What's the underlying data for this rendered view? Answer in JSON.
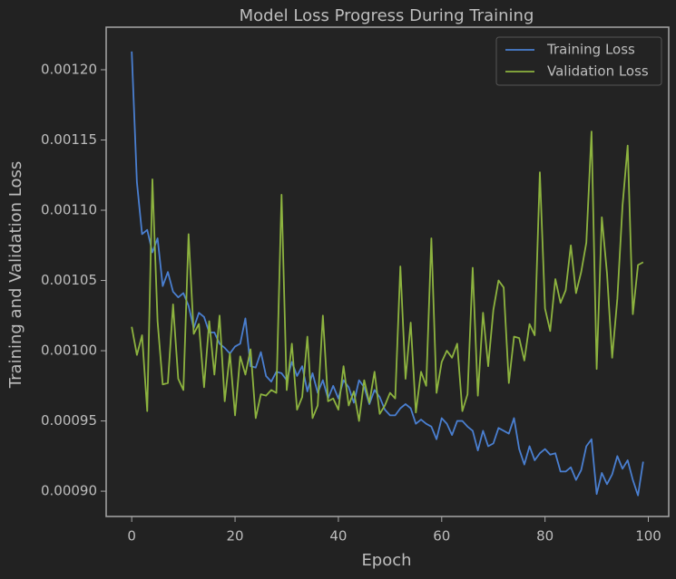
{
  "chart_data": {
    "type": "line",
    "title": "Model Loss Progress During Training",
    "x_label": "Epoch",
    "y_label": "Training and Validation Loss",
    "x": [
      0,
      1,
      2,
      3,
      4,
      5,
      6,
      7,
      8,
      9,
      10,
      11,
      12,
      13,
      14,
      15,
      16,
      17,
      18,
      19,
      20,
      21,
      22,
      23,
      24,
      25,
      26,
      27,
      28,
      29,
      30,
      31,
      32,
      33,
      34,
      35,
      36,
      37,
      38,
      39,
      40,
      41,
      42,
      43,
      44,
      45,
      46,
      47,
      48,
      49,
      50,
      51,
      52,
      53,
      54,
      55,
      56,
      57,
      58,
      59,
      60,
      61,
      62,
      63,
      64,
      65,
      66,
      67,
      68,
      69,
      70,
      71,
      72,
      73,
      74,
      75,
      76,
      77,
      78,
      79,
      80,
      81,
      82,
      83,
      84,
      85,
      86,
      87,
      88,
      89,
      90,
      91,
      92,
      93,
      94,
      95,
      96,
      97,
      98,
      99
    ],
    "series": [
      {
        "name": "Training Loss",
        "color": "#4a7fd0",
        "values": [
          0.001213,
          0.00112,
          0.001083,
          0.001086,
          0.00107,
          0.00108,
          0.001046,
          0.001056,
          0.001042,
          0.001038,
          0.001041,
          0.001032,
          0.001016,
          0.001027,
          0.001024,
          0.001013,
          0.001013,
          0.001005,
          0.001002,
          0.000998,
          0.001003,
          0.001005,
          0.001023,
          0.000989,
          0.000988,
          0.000999,
          0.000982,
          0.000978,
          0.000985,
          0.000984,
          0.000979,
          0.000992,
          0.000982,
          0.000989,
          0.000971,
          0.000984,
          0.00097,
          0.000979,
          0.000966,
          0.000975,
          0.000966,
          0.000979,
          0.000974,
          0.000963,
          0.000979,
          0.000974,
          0.000962,
          0.000972,
          0.000967,
          0.000958,
          0.000954,
          0.000954,
          0.000959,
          0.000962,
          0.000959,
          0.000948,
          0.000951,
          0.000948,
          0.000946,
          0.000937,
          0.000952,
          0.000948,
          0.00094,
          0.00095,
          0.00095,
          0.000946,
          0.000943,
          0.000929,
          0.000943,
          0.000932,
          0.000934,
          0.000945,
          0.000943,
          0.000941,
          0.000952,
          0.00093,
          0.000919,
          0.000932,
          0.000922,
          0.000927,
          0.00093,
          0.000926,
          0.000927,
          0.000914,
          0.000914,
          0.000917,
          0.000908,
          0.000915,
          0.000932,
          0.000937,
          0.000898,
          0.000913,
          0.000905,
          0.000912,
          0.000925,
          0.000916,
          0.000922,
          0.000908,
          0.000897,
          0.000921
        ]
      },
      {
        "name": "Validation Loss",
        "color": "#8db33f",
        "values": [
          0.001017,
          0.000997,
          0.001011,
          0.000957,
          0.001122,
          0.001021,
          0.000976,
          0.000977,
          0.001033,
          0.00098,
          0.000972,
          0.001083,
          0.001012,
          0.001019,
          0.000974,
          0.001021,
          0.000983,
          0.001025,
          0.000964,
          0.000998,
          0.000954,
          0.000996,
          0.000983,
          0.001001,
          0.000952,
          0.000969,
          0.000968,
          0.000972,
          0.00097,
          0.001111,
          0.000972,
          0.001005,
          0.000958,
          0.000967,
          0.00101,
          0.000952,
          0.000961,
          0.001025,
          0.000964,
          0.000966,
          0.000958,
          0.000989,
          0.000961,
          0.000971,
          0.00095,
          0.000979,
          0.000963,
          0.000985,
          0.000955,
          0.000961,
          0.00097,
          0.000966,
          0.00106,
          0.00098,
          0.00102,
          0.000956,
          0.000985,
          0.000975,
          0.00108,
          0.00097,
          0.000992,
          0.001,
          0.000995,
          0.001005,
          0.000957,
          0.000969,
          0.001059,
          0.000968,
          0.001027,
          0.000989,
          0.001029,
          0.00105,
          0.001045,
          0.000977,
          0.00101,
          0.001009,
          0.000993,
          0.001019,
          0.001011,
          0.001127,
          0.00103,
          0.001014,
          0.001051,
          0.001034,
          0.001043,
          0.001075,
          0.001041,
          0.001056,
          0.001077,
          0.001156,
          0.000987,
          0.001095,
          0.001055,
          0.000995,
          0.001037,
          0.001103,
          0.001146,
          0.001026,
          0.001061,
          0.001063
        ]
      }
    ],
    "xlim": [
      -4.95,
      103.95
    ],
    "ylim": [
      0.000882,
      0.0012303
    ],
    "xticks": [
      0,
      20,
      40,
      60,
      80,
      100
    ],
    "yticks": [
      {
        "value": 0.0009,
        "label": "0.00090"
      },
      {
        "value": 0.00095,
        "label": "0.00095"
      },
      {
        "value": 0.001,
        "label": "0.00100"
      },
      {
        "value": 0.00105,
        "label": "0.00105"
      },
      {
        "value": 0.0011,
        "label": "0.00110"
      },
      {
        "value": 0.00115,
        "label": "0.00115"
      },
      {
        "value": 0.0012,
        "label": "0.00120"
      }
    ],
    "grid": false,
    "legend_loc": "upper right"
  }
}
